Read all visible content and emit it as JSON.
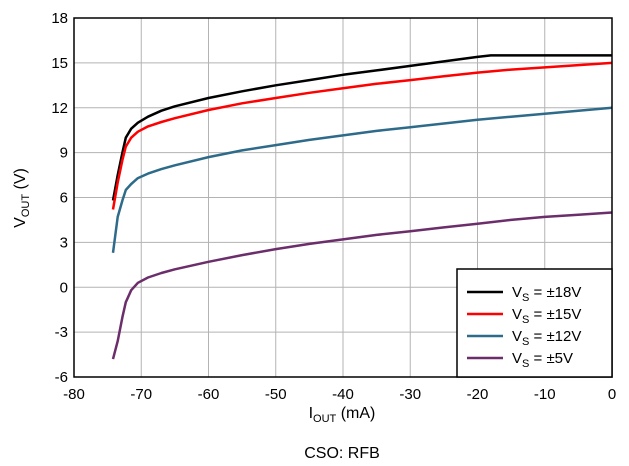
{
  "caption": "CSO: RFB",
  "chart_data": {
    "type": "line",
    "xlabel": {
      "main": "I",
      "sub": "OUT",
      "unit": " (mA)"
    },
    "ylabel": {
      "main": "V",
      "sub": "OUT",
      "unit": " (V)"
    },
    "xlim": [
      -80,
      0
    ],
    "ylim": [
      -6,
      18
    ],
    "xticks": [
      -80,
      -70,
      -60,
      -50,
      -40,
      -30,
      -20,
      -10,
      0
    ],
    "yticks": [
      -6,
      -3,
      0,
      3,
      6,
      9,
      12,
      15,
      18
    ],
    "grid": true,
    "legend_position": "bottom-right",
    "series": [
      {
        "name": "V_S = ±18V",
        "legend": {
          "main": "V",
          "sub": "S",
          "rest": " = ±18V"
        },
        "color": "#000000",
        "points": [
          [
            -74.2,
            5.8
          ],
          [
            -73.5,
            7.5
          ],
          [
            -72.8,
            9.0
          ],
          [
            -72.3,
            10.0
          ],
          [
            -71.5,
            10.6
          ],
          [
            -70.5,
            11.0
          ],
          [
            -69,
            11.4
          ],
          [
            -67,
            11.8
          ],
          [
            -65,
            12.1
          ],
          [
            -60,
            12.65
          ],
          [
            -55,
            13.1
          ],
          [
            -50,
            13.5
          ],
          [
            -45,
            13.85
          ],
          [
            -40,
            14.2
          ],
          [
            -35,
            14.5
          ],
          [
            -30,
            14.8
          ],
          [
            -25,
            15.1
          ],
          [
            -20,
            15.4
          ],
          [
            -18,
            15.5
          ],
          [
            -15,
            15.5
          ],
          [
            -10,
            15.5
          ],
          [
            -5,
            15.5
          ],
          [
            0,
            15.5
          ]
        ]
      },
      {
        "name": "V_S = ±15V",
        "legend": {
          "main": "V",
          "sub": "S",
          "rest": " = ±15V"
        },
        "color": "#ff0000",
        "points": [
          [
            -74.2,
            5.2
          ],
          [
            -73.5,
            7.0
          ],
          [
            -72.8,
            8.5
          ],
          [
            -72.3,
            9.4
          ],
          [
            -71.5,
            10.0
          ],
          [
            -70.5,
            10.4
          ],
          [
            -69,
            10.75
          ],
          [
            -67,
            11.05
          ],
          [
            -65,
            11.3
          ],
          [
            -60,
            11.85
          ],
          [
            -55,
            12.3
          ],
          [
            -50,
            12.65
          ],
          [
            -45,
            13.0
          ],
          [
            -40,
            13.3
          ],
          [
            -35,
            13.6
          ],
          [
            -30,
            13.85
          ],
          [
            -25,
            14.1
          ],
          [
            -20,
            14.35
          ],
          [
            -15,
            14.55
          ],
          [
            -10,
            14.7
          ],
          [
            -5,
            14.85
          ],
          [
            0,
            15.0
          ]
        ]
      },
      {
        "name": "V_S = ±12V",
        "legend": {
          "main": "V",
          "sub": "S",
          "rest": " = ±12V"
        },
        "color": "#2e6b8a",
        "points": [
          [
            -74.2,
            2.3
          ],
          [
            -73.5,
            4.7
          ],
          [
            -72.8,
            5.8
          ],
          [
            -72.3,
            6.5
          ],
          [
            -71.5,
            6.9
          ],
          [
            -70.5,
            7.3
          ],
          [
            -69,
            7.6
          ],
          [
            -67,
            7.9
          ],
          [
            -65,
            8.15
          ],
          [
            -60,
            8.7
          ],
          [
            -55,
            9.15
          ],
          [
            -50,
            9.5
          ],
          [
            -45,
            9.85
          ],
          [
            -40,
            10.15
          ],
          [
            -35,
            10.45
          ],
          [
            -30,
            10.7
          ],
          [
            -25,
            10.95
          ],
          [
            -20,
            11.2
          ],
          [
            -15,
            11.4
          ],
          [
            -10,
            11.6
          ],
          [
            -5,
            11.8
          ],
          [
            0,
            12.0
          ]
        ]
      },
      {
        "name": "V_S = ±5V",
        "legend": {
          "main": "V",
          "sub": "S",
          "rest": " = ±5V"
        },
        "color": "#6b2e6b",
        "points": [
          [
            -74.2,
            -4.8
          ],
          [
            -73.5,
            -3.6
          ],
          [
            -72.8,
            -2.0
          ],
          [
            -72.3,
            -1.0
          ],
          [
            -71.5,
            -0.2
          ],
          [
            -70.5,
            0.3
          ],
          [
            -69,
            0.65
          ],
          [
            -67,
            0.95
          ],
          [
            -65,
            1.2
          ],
          [
            -60,
            1.7
          ],
          [
            -55,
            2.15
          ],
          [
            -50,
            2.55
          ],
          [
            -45,
            2.9
          ],
          [
            -40,
            3.2
          ],
          [
            -35,
            3.5
          ],
          [
            -30,
            3.75
          ],
          [
            -25,
            4.0
          ],
          [
            -20,
            4.25
          ],
          [
            -15,
            4.5
          ],
          [
            -10,
            4.7
          ],
          [
            -5,
            4.85
          ],
          [
            0,
            5.0
          ]
        ]
      }
    ]
  }
}
